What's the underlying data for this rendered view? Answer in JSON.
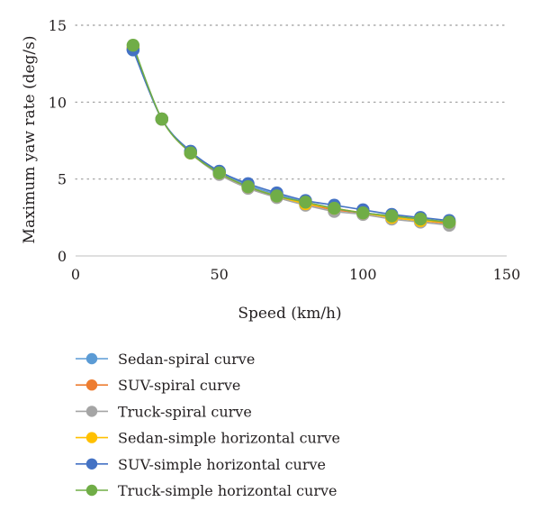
{
  "chart_data": {
    "type": "line",
    "xlabel": "Speed (km/h)",
    "ylabel": "Maximum yaw rate (deg/s)",
    "xlim": [
      0,
      150
    ],
    "ylim": [
      0,
      15
    ],
    "x_ticks": [
      0,
      50,
      100,
      150
    ],
    "y_ticks": [
      0,
      5,
      10,
      15
    ],
    "grid": "horizontal dotted",
    "legend_position": "bottom",
    "x": [
      20,
      30,
      40,
      50,
      60,
      70,
      80,
      90,
      100,
      110,
      120,
      130
    ],
    "series": [
      {
        "name": "Sedan-spiral curve",
        "color": "#5b9bd5",
        "values": [
          13.4,
          8.9,
          6.8,
          5.5,
          4.6,
          4.0,
          3.5,
          3.1,
          2.8,
          2.6,
          2.4,
          2.2
        ]
      },
      {
        "name": "SUV-spiral curve",
        "color": "#ed7d31",
        "values": [
          13.5,
          8.9,
          6.7,
          5.4,
          4.5,
          3.9,
          3.4,
          3.0,
          2.8,
          2.5,
          2.3,
          2.1
        ]
      },
      {
        "name": "Truck-spiral curve",
        "color": "#a5a5a5",
        "values": [
          13.5,
          8.9,
          6.7,
          5.3,
          4.4,
          3.8,
          3.3,
          2.9,
          2.7,
          2.4,
          2.2,
          2.0
        ]
      },
      {
        "name": "Sedan-simple horizontal curve",
        "color": "#ffc000",
        "values": [
          13.5,
          8.9,
          6.7,
          5.4,
          4.5,
          3.9,
          3.4,
          3.1,
          2.8,
          2.5,
          2.3,
          2.2
        ]
      },
      {
        "name": "SUV-simple horizontal curve",
        "color": "#4472c4",
        "values": [
          13.4,
          8.9,
          6.8,
          5.5,
          4.7,
          4.1,
          3.6,
          3.3,
          3.0,
          2.7,
          2.5,
          2.3
        ]
      },
      {
        "name": "Truck-simple horizontal curve",
        "color": "#70ad47",
        "values": [
          13.7,
          8.9,
          6.7,
          5.4,
          4.5,
          3.9,
          3.5,
          3.1,
          2.8,
          2.6,
          2.4,
          2.2
        ]
      }
    ]
  }
}
